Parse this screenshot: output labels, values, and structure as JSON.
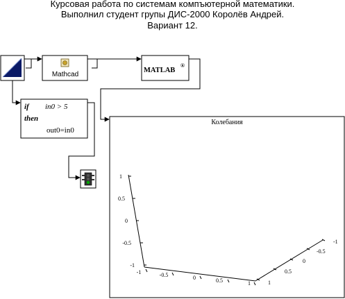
{
  "header": {
    "line1": "Курсовая работа по системам компъютерной математики.",
    "line2": "Выполнил студент групы ДИС-2000 Королёв Андрей.",
    "line3": "Вариант 12."
  },
  "blocks": {
    "mathcad_label": "Mathcad",
    "matlab_label": "MATLAB",
    "matlab_reg": "®",
    "if_keyword": "if",
    "if_condition": "in0 > 5",
    "then_keyword": "then",
    "if_action": "out0=in0"
  },
  "plot": {
    "title": "Колебания",
    "z_ticks": [
      "1",
      "0.5",
      "0",
      "-0.5",
      "-1"
    ],
    "x_ticks": [
      "-1",
      "-0.5",
      "0",
      "0.5",
      "1"
    ],
    "y_ticks": [
      "1",
      "0.5",
      "0",
      "-0.5",
      "-1"
    ]
  },
  "colors": {
    "input_fill": "#0b1a66",
    "line": "#000000",
    "traffic_green": "#00aa00"
  }
}
